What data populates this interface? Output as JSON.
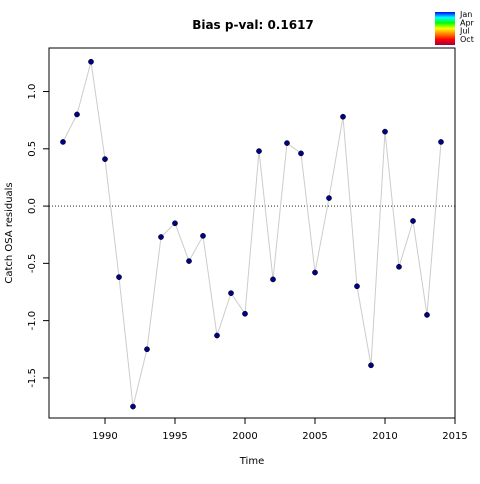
{
  "chart_data": {
    "type": "scatter",
    "title": "Bias p-val: 0.1617",
    "title_color": "#228B22",
    "xlabel": "Time",
    "ylabel": "Catch OSA residuals",
    "xlim": [
      1986,
      2015
    ],
    "ylim": [
      -1.85,
      1.38
    ],
    "x_ticks": [
      1990,
      1995,
      2000,
      2005,
      2010,
      2015
    ],
    "x_tick_labels": [
      "1990",
      "1995",
      "2000",
      "2005",
      "2010",
      "2015"
    ],
    "y_ticks": [
      -1.5,
      -1.0,
      -0.5,
      0.0,
      0.5,
      1.0
    ],
    "y_tick_labels": [
      "-1.5",
      "-1.0",
      "-0.5",
      "0.0",
      "0.5",
      "1.0"
    ],
    "reference_line": {
      "y": 0.0,
      "style": "dotted"
    },
    "grid": false,
    "legend": {
      "position": "top-right",
      "entries": [
        "Jan",
        "Apr",
        "Jul",
        "Oct"
      ],
      "gradient_colors": [
        "#0000ff",
        "#00ffff",
        "#00ff00",
        "#ffff00",
        "#ff8000",
        "#ff0000",
        "#a0004a"
      ]
    },
    "series": [
      {
        "point_color": "#00008b",
        "line_color": "#cccccc",
        "x": [
          1987,
          1988,
          1989,
          1990,
          1991,
          1992,
          1993,
          1994,
          1995,
          1996,
          1997,
          1998,
          1999,
          2000,
          2001,
          2002,
          2003,
          2004,
          2005,
          2006,
          2007,
          2008,
          2009,
          2010,
          2011,
          2012,
          2013,
          2014
        ],
        "y": [
          0.56,
          0.8,
          1.26,
          0.41,
          -0.62,
          -1.75,
          -1.25,
          -0.27,
          -0.15,
          -0.48,
          -0.26,
          -1.13,
          -0.76,
          -0.94,
          0.48,
          -0.64,
          0.55,
          0.46,
          -0.58,
          0.07,
          0.78,
          -0.7,
          -1.39,
          0.65,
          -0.53,
          -0.13,
          -0.95,
          0.56
        ]
      }
    ]
  }
}
